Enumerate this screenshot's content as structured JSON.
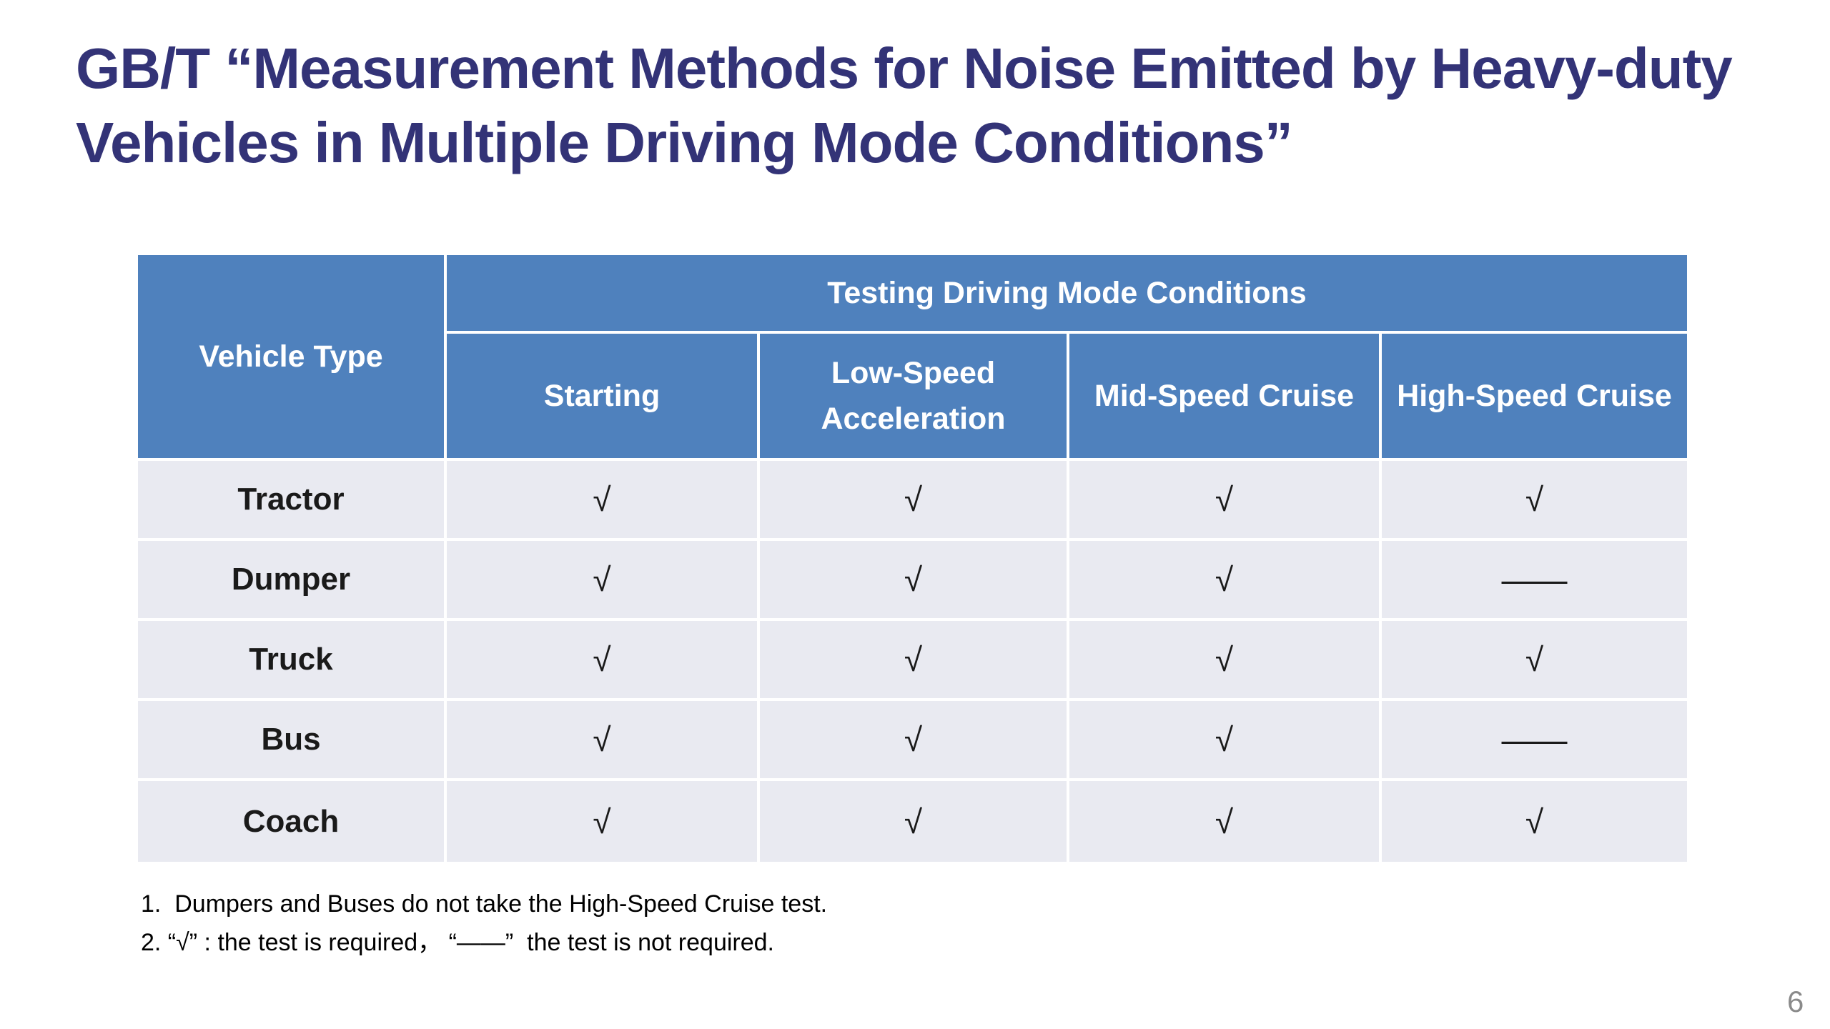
{
  "slide": {
    "title_lines": [
      "GB/T “Measurement Methods for Noise Emitted by Heavy-duty",
      "Vehicles in Multiple Driving Mode Conditions”"
    ],
    "page_number": "6"
  },
  "table": {
    "corner_header": "Vehicle Type",
    "group_header": "Testing Driving Mode Conditions",
    "columns": [
      "Starting",
      "Low-Speed Acceleration",
      "Mid-Speed Cruise",
      "High-Speed Cruise"
    ],
    "rows": [
      {
        "label": "Tractor",
        "values": [
          "√",
          "√",
          "√",
          "√"
        ]
      },
      {
        "label": "Dumper",
        "values": [
          "√",
          "√",
          "√",
          "——"
        ]
      },
      {
        "label": "Truck",
        "values": [
          "√",
          "√",
          "√",
          "√"
        ]
      },
      {
        "label": "Bus",
        "values": [
          "√",
          "√",
          "√",
          "——"
        ]
      },
      {
        "label": "Coach",
        "values": [
          "√",
          "√",
          "√",
          "√"
        ]
      }
    ],
    "legend": {
      "required": "√",
      "not_required": "——"
    }
  },
  "notes": [
    "1.  Dumpers and Buses do not take the High-Speed Cruise test.",
    "2. “√” : the test is required， “——”  the test is not required."
  ],
  "colors": {
    "header_bg": "#4F81BD",
    "row_bg": "#E9EAF1",
    "grid_line": "#FFFFFF",
    "title_text": "#333377",
    "header_text": "#FFFFFF",
    "body_text": "#1A1A1A",
    "note_text": "#000000",
    "page_number_text": "#8A8A8A"
  }
}
